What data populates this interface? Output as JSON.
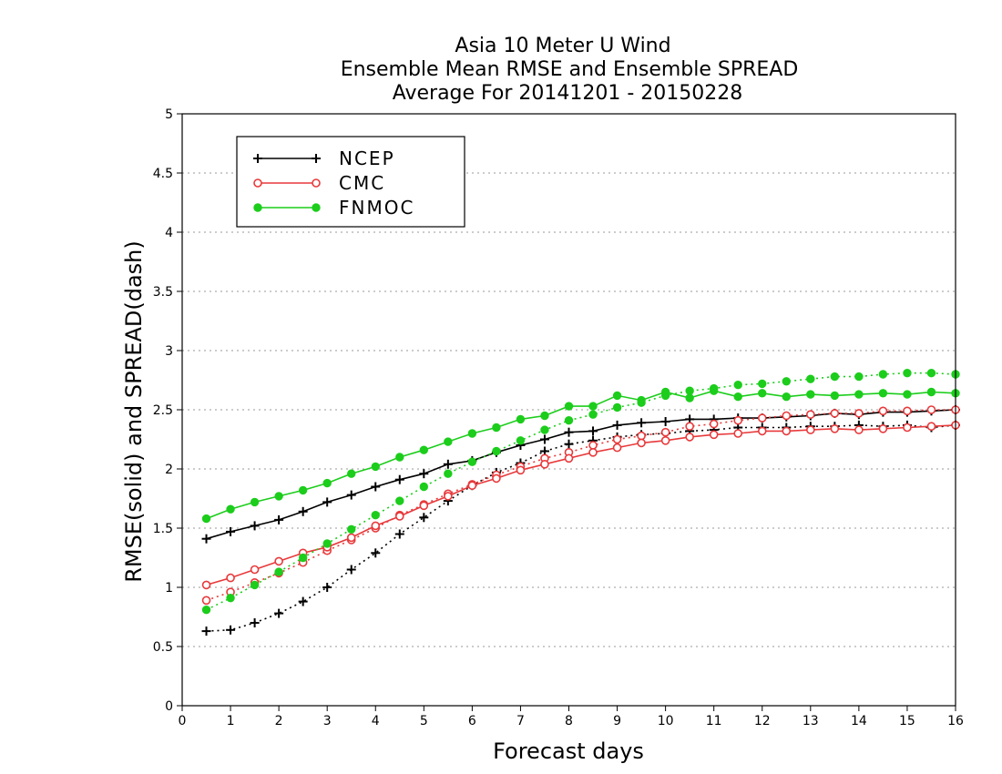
{
  "chart_data": {
    "type": "line",
    "title": [
      "Asia 10 Meter U Wind",
      "Ensemble Mean RMSE and Ensemble SPREAD",
      "Average For 20141201 - 20150228"
    ],
    "xlabel": "Forecast days",
    "ylabel": "RMSE(solid) and SPREAD(dash)",
    "xlim": [
      0,
      16
    ],
    "ylim": [
      0,
      5
    ],
    "xticks": [
      "0",
      "1",
      "2",
      "3",
      "4",
      "5",
      "6",
      "7",
      "8",
      "9",
      "10",
      "11",
      "12",
      "13",
      "14",
      "15",
      "16"
    ],
    "yticks": [
      "0",
      "0.5",
      "1",
      "1.5",
      "2",
      "2.5",
      "3",
      "3.5",
      "4",
      "4.5",
      "5"
    ],
    "grid": true,
    "legend_position": "top-left",
    "x": [
      0.5,
      1,
      1.5,
      2,
      2.5,
      3,
      3.5,
      4,
      4.5,
      5,
      5.5,
      6,
      6.5,
      7,
      7.5,
      8,
      8.5,
      9,
      9.5,
      10,
      10.5,
      11,
      11.5,
      12,
      12.5,
      13,
      13.5,
      14,
      14.5,
      15,
      15.5,
      16
    ],
    "series": [
      {
        "name": "NCEP",
        "color": "#000000",
        "marker": "plus",
        "rmse": [
          1.41,
          1.47,
          1.52,
          1.57,
          1.64,
          1.72,
          1.78,
          1.85,
          1.91,
          1.96,
          2.04,
          2.07,
          2.14,
          2.2,
          2.25,
          2.31,
          2.32,
          2.37,
          2.39,
          2.4,
          2.42,
          2.42,
          2.43,
          2.43,
          2.44,
          2.45,
          2.47,
          2.46,
          2.48,
          2.48,
          2.49,
          2.5
        ],
        "spread": [
          0.63,
          0.64,
          0.7,
          0.78,
          0.88,
          1.0,
          1.15,
          1.29,
          1.45,
          1.59,
          1.73,
          1.86,
          1.97,
          2.05,
          2.15,
          2.21,
          2.24,
          2.27,
          2.29,
          2.3,
          2.32,
          2.33,
          2.35,
          2.35,
          2.35,
          2.36,
          2.36,
          2.37,
          2.36,
          2.37,
          2.35,
          2.37
        ]
      },
      {
        "name": "CMC",
        "color": "#e8393b",
        "marker": "open-circle",
        "rmse": [
          1.02,
          1.08,
          1.15,
          1.22,
          1.29,
          1.34,
          1.42,
          1.52,
          1.6,
          1.69,
          1.77,
          1.86,
          1.92,
          1.99,
          2.04,
          2.09,
          2.14,
          2.18,
          2.22,
          2.24,
          2.27,
          2.29,
          2.3,
          2.32,
          2.32,
          2.33,
          2.34,
          2.33,
          2.34,
          2.35,
          2.36,
          2.37
        ],
        "spread": [
          0.89,
          0.96,
          1.04,
          1.12,
          1.21,
          1.31,
          1.4,
          1.5,
          1.61,
          1.7,
          1.79,
          1.87,
          1.95,
          2.02,
          2.09,
          2.14,
          2.2,
          2.25,
          2.28,
          2.31,
          2.36,
          2.38,
          2.41,
          2.43,
          2.45,
          2.46,
          2.47,
          2.47,
          2.49,
          2.49,
          2.5,
          2.5
        ]
      },
      {
        "name": "FNMOC",
        "color": "#1ccd1c",
        "marker": "filled-circle",
        "rmse": [
          1.58,
          1.66,
          1.72,
          1.77,
          1.82,
          1.88,
          1.96,
          2.02,
          2.1,
          2.16,
          2.23,
          2.3,
          2.35,
          2.42,
          2.45,
          2.53,
          2.53,
          2.62,
          2.58,
          2.65,
          2.6,
          2.66,
          2.61,
          2.64,
          2.61,
          2.63,
          2.62,
          2.63,
          2.64,
          2.63,
          2.65,
          2.64
        ],
        "spread": [
          0.81,
          0.91,
          1.02,
          1.13,
          1.25,
          1.37,
          1.49,
          1.61,
          1.73,
          1.85,
          1.96,
          2.06,
          2.15,
          2.24,
          2.33,
          2.41,
          2.46,
          2.52,
          2.56,
          2.62,
          2.66,
          2.68,
          2.71,
          2.72,
          2.74,
          2.76,
          2.78,
          2.78,
          2.8,
          2.81,
          2.81,
          2.8
        ]
      }
    ]
  }
}
